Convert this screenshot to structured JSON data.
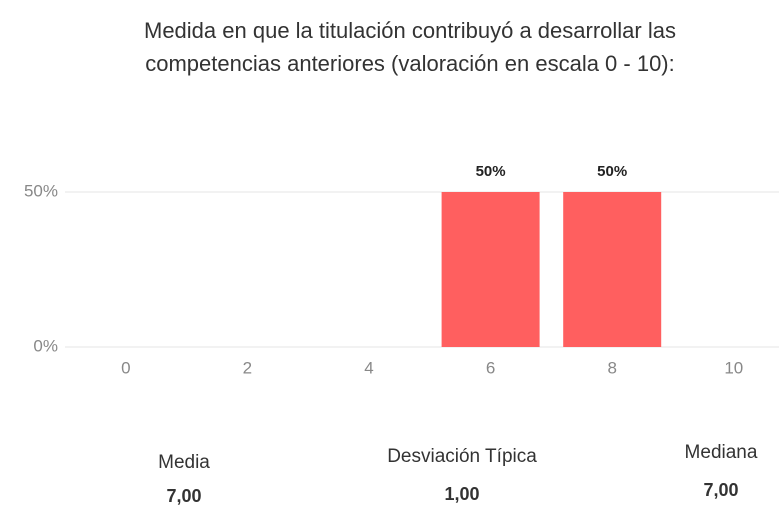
{
  "chart_data": {
    "type": "bar",
    "title": [
      "Medida en que la titulación contribuyó a desarrollar las",
      "competencias anteriores (valoración en escala 0 - 10):"
    ],
    "categories": [
      "0",
      "2",
      "4",
      "6",
      "8",
      "10"
    ],
    "values": [
      0,
      0,
      0,
      50,
      50,
      0
    ],
    "value_labels": [
      null,
      null,
      null,
      "50%",
      "50%",
      null
    ],
    "color": "#ff5f5f",
    "ylim": [
      0,
      50
    ],
    "yticks": [
      {
        "value": 0,
        "label": "0%"
      },
      {
        "value": 50,
        "label": "50%"
      }
    ],
    "grid": true
  },
  "stats": [
    {
      "label": "Media",
      "value": "7,00"
    },
    {
      "label": "Desviación Típica",
      "value": "1,00"
    },
    {
      "label": "Mediana",
      "value": "7,00"
    }
  ]
}
